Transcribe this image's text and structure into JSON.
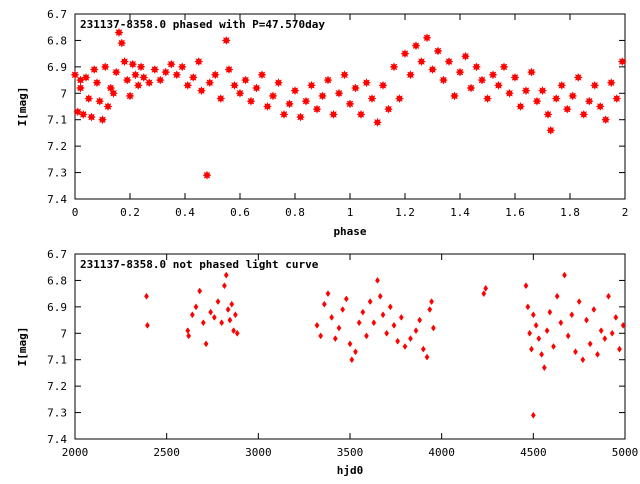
{
  "chart_data": [
    {
      "type": "scatter",
      "title": "231137-8358.0 phased with P=47.570day",
      "xlabel": "phase",
      "ylabel": "I[mag]",
      "xlim": [
        0,
        2
      ],
      "ylim": [
        6.7,
        7.4
      ],
      "y_inverted": true,
      "grid": false,
      "marker": "star",
      "color": "#ff0000",
      "xticks": [
        0,
        0.2,
        0.4,
        0.6,
        0.8,
        1,
        1.2,
        1.4,
        1.6,
        1.8,
        2
      ],
      "yticks": [
        6.7,
        6.8,
        6.9,
        7,
        7.1,
        7.2,
        7.3,
        7.4
      ],
      "xtick_labels": [
        "0",
        "0.2",
        "0.4",
        "0.6",
        "0.8",
        "1",
        "1.2",
        "1.4",
        "1.6",
        "1.8",
        "2"
      ],
      "ytick_labels": [
        "6.7",
        "6.8",
        "6.9",
        "7",
        "7.1",
        "7.2",
        "7.3",
        "7.4"
      ],
      "points": [
        [
          0.0,
          6.93
        ],
        [
          0.01,
          7.07
        ],
        [
          0.02,
          6.95
        ],
        [
          0.02,
          6.98
        ],
        [
          0.03,
          7.08
        ],
        [
          0.04,
          6.94
        ],
        [
          0.05,
          7.02
        ],
        [
          0.06,
          7.09
        ],
        [
          0.07,
          6.91
        ],
        [
          0.08,
          6.96
        ],
        [
          0.09,
          7.03
        ],
        [
          0.1,
          7.1
        ],
        [
          0.11,
          6.9
        ],
        [
          0.12,
          7.05
        ],
        [
          0.13,
          6.98
        ],
        [
          0.14,
          7.0
        ],
        [
          0.15,
          6.92
        ],
        [
          0.16,
          6.77
        ],
        [
          0.17,
          6.81
        ],
        [
          0.18,
          6.88
        ],
        [
          0.19,
          6.95
        ],
        [
          0.2,
          7.01
        ],
        [
          0.21,
          6.89
        ],
        [
          0.22,
          6.93
        ],
        [
          0.23,
          6.97
        ],
        [
          0.24,
          6.9
        ],
        [
          0.25,
          6.94
        ],
        [
          0.27,
          6.96
        ],
        [
          0.29,
          6.91
        ],
        [
          0.31,
          6.95
        ],
        [
          0.33,
          6.92
        ],
        [
          0.35,
          6.89
        ],
        [
          0.37,
          6.93
        ],
        [
          0.39,
          6.9
        ],
        [
          0.41,
          6.97
        ],
        [
          0.43,
          6.94
        ],
        [
          0.45,
          6.88
        ],
        [
          0.46,
          6.99
        ],
        [
          0.48,
          7.31
        ],
        [
          0.49,
          6.96
        ],
        [
          0.51,
          6.93
        ],
        [
          0.53,
          7.02
        ],
        [
          0.55,
          6.8
        ],
        [
          0.56,
          6.91
        ],
        [
          0.58,
          6.97
        ],
        [
          0.6,
          7.0
        ],
        [
          0.62,
          6.95
        ],
        [
          0.64,
          7.03
        ],
        [
          0.66,
          6.98
        ],
        [
          0.68,
          6.93
        ],
        [
          0.7,
          7.05
        ],
        [
          0.72,
          7.01
        ],
        [
          0.74,
          6.96
        ],
        [
          0.76,
          7.08
        ],
        [
          0.78,
          7.04
        ],
        [
          0.8,
          6.99
        ],
        [
          0.82,
          7.09
        ],
        [
          0.84,
          7.03
        ],
        [
          0.86,
          6.97
        ],
        [
          0.88,
          7.06
        ],
        [
          0.9,
          7.01
        ],
        [
          0.92,
          6.95
        ],
        [
          0.94,
          7.08
        ],
        [
          0.96,
          7.0
        ],
        [
          0.98,
          6.93
        ],
        [
          1.0,
          7.04
        ],
        [
          1.02,
          6.98
        ],
        [
          1.04,
          7.08
        ],
        [
          1.06,
          6.96
        ],
        [
          1.08,
          7.02
        ],
        [
          1.1,
          7.11
        ],
        [
          1.12,
          6.97
        ],
        [
          1.14,
          7.06
        ],
        [
          1.16,
          6.9
        ],
        [
          1.18,
          7.02
        ],
        [
          1.2,
          6.85
        ],
        [
          1.22,
          6.93
        ],
        [
          1.24,
          6.82
        ],
        [
          1.26,
          6.88
        ],
        [
          1.28,
          6.79
        ],
        [
          1.3,
          6.91
        ],
        [
          1.32,
          6.84
        ],
        [
          1.34,
          6.95
        ],
        [
          1.36,
          6.88
        ],
        [
          1.38,
          7.01
        ],
        [
          1.4,
          6.92
        ],
        [
          1.42,
          6.86
        ],
        [
          1.44,
          6.98
        ],
        [
          1.46,
          6.9
        ],
        [
          1.48,
          6.95
        ],
        [
          1.5,
          7.02
        ],
        [
          1.52,
          6.93
        ],
        [
          1.54,
          6.97
        ],
        [
          1.56,
          6.9
        ],
        [
          1.58,
          7.0
        ],
        [
          1.6,
          6.94
        ],
        [
          1.62,
          7.05
        ],
        [
          1.64,
          6.99
        ],
        [
          1.66,
          6.92
        ],
        [
          1.68,
          7.03
        ],
        [
          1.7,
          6.99
        ],
        [
          1.72,
          7.08
        ],
        [
          1.73,
          7.14
        ],
        [
          1.75,
          7.02
        ],
        [
          1.77,
          6.97
        ],
        [
          1.79,
          7.06
        ],
        [
          1.81,
          7.01
        ],
        [
          1.83,
          6.94
        ],
        [
          1.85,
          7.08
        ],
        [
          1.87,
          7.03
        ],
        [
          1.89,
          6.97
        ],
        [
          1.91,
          7.05
        ],
        [
          1.93,
          7.1
        ],
        [
          1.95,
          6.96
        ],
        [
          1.97,
          7.02
        ],
        [
          1.99,
          6.88
        ]
      ]
    },
    {
      "type": "scatter",
      "title": "231137-8358.0 not phased light curve",
      "xlabel": "hjd0",
      "ylabel": "I[mag]",
      "xlim": [
        2000,
        5000
      ],
      "ylim": [
        6.7,
        7.4
      ],
      "y_inverted": true,
      "grid": false,
      "marker": "diamond",
      "color": "#ff0000",
      "xticks": [
        2000,
        2500,
        3000,
        3500,
        4000,
        4500,
        5000
      ],
      "yticks": [
        6.7,
        6.8,
        6.9,
        7,
        7.1,
        7.2,
        7.3,
        7.4
      ],
      "xtick_labels": [
        "2000",
        "2500",
        "3000",
        "3500",
        "4000",
        "4500",
        "5000"
      ],
      "ytick_labels": [
        "6.7",
        "6.8",
        "6.9",
        "7",
        "7.1",
        "7.2",
        "7.3",
        "7.4"
      ],
      "points": [
        [
          2390,
          6.86
        ],
        [
          2395,
          6.97
        ],
        [
          2615,
          6.99
        ],
        [
          2620,
          7.01
        ],
        [
          2640,
          6.93
        ],
        [
          2660,
          6.9
        ],
        [
          2680,
          6.84
        ],
        [
          2700,
          6.96
        ],
        [
          2715,
          7.04
        ],
        [
          2740,
          6.92
        ],
        [
          2760,
          6.94
        ],
        [
          2780,
          6.88
        ],
        [
          2800,
          6.96
        ],
        [
          2815,
          6.82
        ],
        [
          2825,
          6.78
        ],
        [
          2835,
          6.91
        ],
        [
          2845,
          6.95
        ],
        [
          2855,
          6.89
        ],
        [
          2865,
          6.99
        ],
        [
          2875,
          6.93
        ],
        [
          2885,
          7.0
        ],
        [
          3320,
          6.97
        ],
        [
          3340,
          7.01
        ],
        [
          3360,
          6.89
        ],
        [
          3380,
          6.85
        ],
        [
          3400,
          6.94
        ],
        [
          3420,
          7.02
        ],
        [
          3440,
          6.98
        ],
        [
          3460,
          6.91
        ],
        [
          3480,
          6.87
        ],
        [
          3500,
          7.04
        ],
        [
          3510,
          7.1
        ],
        [
          3530,
          7.07
        ],
        [
          3550,
          6.96
        ],
        [
          3570,
          6.92
        ],
        [
          3590,
          7.01
        ],
        [
          3610,
          6.88
        ],
        [
          3630,
          6.96
        ],
        [
          3650,
          6.8
        ],
        [
          3665,
          6.86
        ],
        [
          3680,
          6.93
        ],
        [
          3700,
          7.0
        ],
        [
          3720,
          6.9
        ],
        [
          3740,
          6.97
        ],
        [
          3760,
          7.03
        ],
        [
          3780,
          6.94
        ],
        [
          3800,
          7.05
        ],
        [
          3830,
          7.02
        ],
        [
          3860,
          6.99
        ],
        [
          3880,
          6.95
        ],
        [
          3900,
          7.06
        ],
        [
          3920,
          7.09
        ],
        [
          3935,
          6.91
        ],
        [
          3945,
          6.88
        ],
        [
          3955,
          6.98
        ],
        [
          4230,
          6.85
        ],
        [
          4240,
          6.83
        ],
        [
          4460,
          6.82
        ],
        [
          4470,
          6.9
        ],
        [
          4480,
          7.0
        ],
        [
          4490,
          7.06
        ],
        [
          4500,
          6.93
        ],
        [
          4500,
          7.31
        ],
        [
          4515,
          6.97
        ],
        [
          4530,
          7.02
        ],
        [
          4545,
          7.08
        ],
        [
          4560,
          7.13
        ],
        [
          4575,
          6.99
        ],
        [
          4590,
          6.92
        ],
        [
          4610,
          7.05
        ],
        [
          4630,
          6.86
        ],
        [
          4650,
          6.96
        ],
        [
          4670,
          6.78
        ],
        [
          4690,
          7.01
        ],
        [
          4710,
          6.93
        ],
        [
          4730,
          7.07
        ],
        [
          4750,
          6.88
        ],
        [
          4770,
          7.1
        ],
        [
          4790,
          6.95
        ],
        [
          4810,
          7.04
        ],
        [
          4830,
          6.91
        ],
        [
          4850,
          7.08
        ],
        [
          4870,
          6.99
        ],
        [
          4890,
          7.02
        ],
        [
          4910,
          6.86
        ],
        [
          4930,
          7.0
        ],
        [
          4950,
          6.94
        ],
        [
          4970,
          7.06
        ],
        [
          4990,
          6.97
        ]
      ]
    }
  ]
}
